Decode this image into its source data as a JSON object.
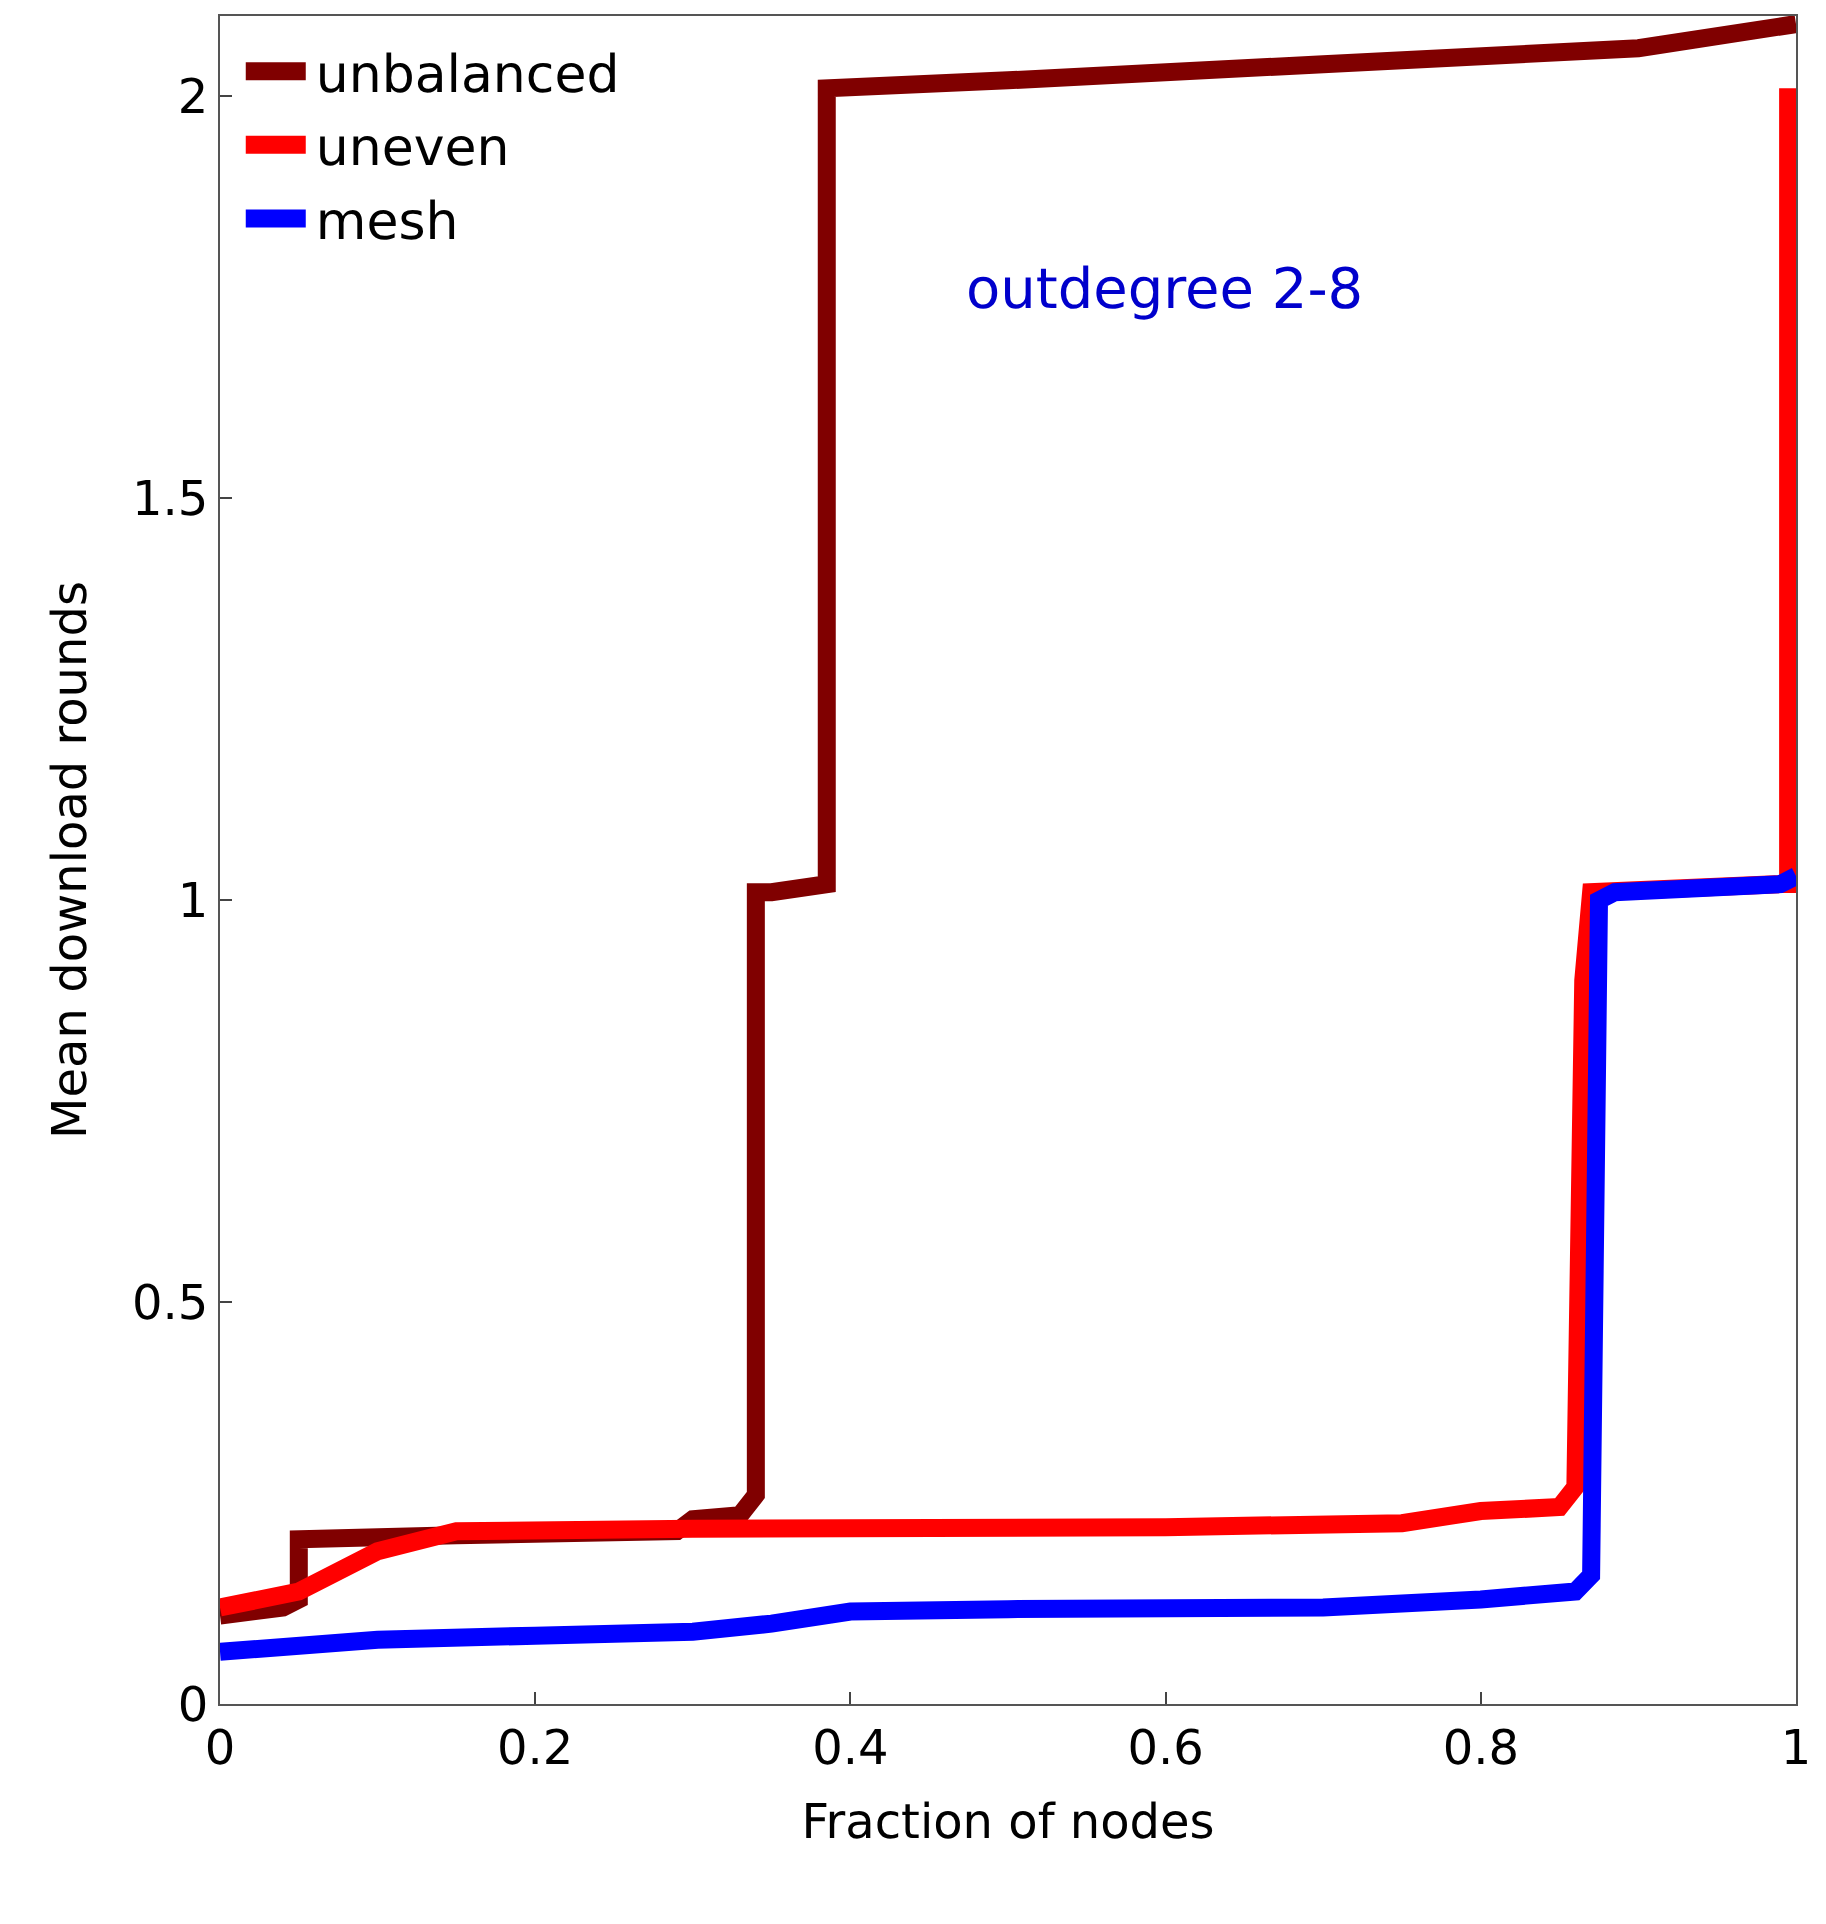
{
  "chart_data": {
    "type": "line",
    "xlabel": "Fraction of nodes",
    "ylabel": "Mean download rounds",
    "xlim": [
      0,
      1
    ],
    "ylim": [
      0,
      2.1
    ],
    "xticks": [
      0,
      0.2,
      0.4,
      0.6,
      0.8,
      1
    ],
    "yticks": [
      0,
      0.5,
      1,
      1.5,
      2
    ],
    "legend": "top left",
    "marker": "none",
    "line_style": "solid",
    "annotations": [
      "outdegree 2-8"
    ],
    "series": [
      {
        "name": "unbalanced",
        "color": "#800000",
        "x": [
          0,
          0.04,
          0.05,
          0.05,
          0.15,
          0.29,
          0.3,
          0.33,
          0.34,
          0.34,
          0.35,
          0.385,
          0.385,
          0.5,
          0.7,
          0.9,
          1.0
        ],
        "values": [
          0.11,
          0.12,
          0.13,
          0.205,
          0.21,
          0.215,
          0.23,
          0.235,
          0.26,
          1.01,
          1.01,
          1.02,
          2.01,
          2.02,
          2.04,
          2.06,
          2.09
        ]
      },
      {
        "name": "uneven",
        "color": "#ff0000",
        "x": [
          0,
          0.05,
          0.1,
          0.15,
          0.3,
          0.6,
          0.75,
          0.8,
          0.85,
          0.86,
          0.865,
          0.87,
          0.99,
          0.995,
          0.995
        ],
        "values": [
          0.12,
          0.14,
          0.19,
          0.215,
          0.218,
          0.22,
          0.225,
          0.24,
          0.245,
          0.27,
          0.9,
          1.01,
          1.02,
          1.02,
          2.01
        ]
      },
      {
        "name": "mesh",
        "color": "#0000ff",
        "x": [
          0,
          0.1,
          0.2,
          0.3,
          0.35,
          0.4,
          0.5,
          0.7,
          0.8,
          0.86,
          0.87,
          0.875,
          0.885,
          0.99,
          1.0
        ],
        "values": [
          0.065,
          0.08,
          0.085,
          0.09,
          0.1,
          0.115,
          0.118,
          0.12,
          0.13,
          0.14,
          0.16,
          1.0,
          1.01,
          1.02,
          1.03
        ]
      }
    ]
  }
}
